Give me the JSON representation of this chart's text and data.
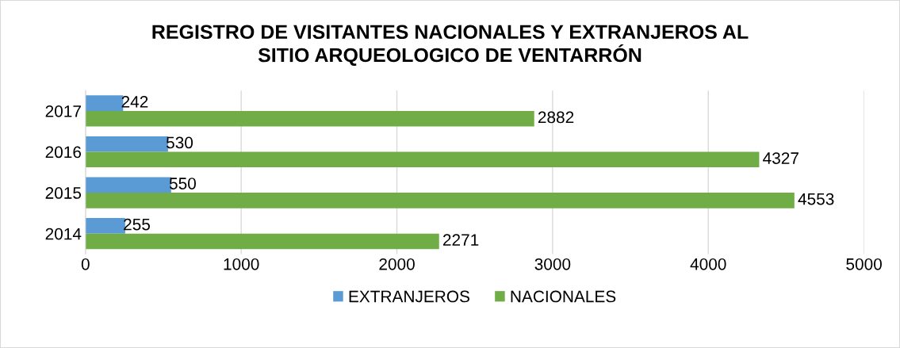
{
  "chart_data": {
    "type": "bar",
    "orientation": "horizontal",
    "title": "REGISTRO DE VISITANTES NACIONALES Y EXTRANJEROS AL\nSITIO ARQUEOLOGICO DE VENTARRÓN",
    "categories": [
      "2017",
      "2016",
      "2015",
      "2014"
    ],
    "series": [
      {
        "name": "EXTRANJEROS",
        "color": "#5b9bd5",
        "values": [
          242,
          530,
          550,
          255
        ]
      },
      {
        "name": "NACIONALES",
        "color": "#70ad47",
        "values": [
          2882,
          4327,
          4553,
          2271
        ]
      }
    ],
    "xlim": [
      0,
      5000
    ],
    "xticks": [
      0,
      1000,
      2000,
      3000,
      4000,
      5000
    ],
    "grid": "x",
    "legend": "bottom",
    "data_labels": true
  }
}
